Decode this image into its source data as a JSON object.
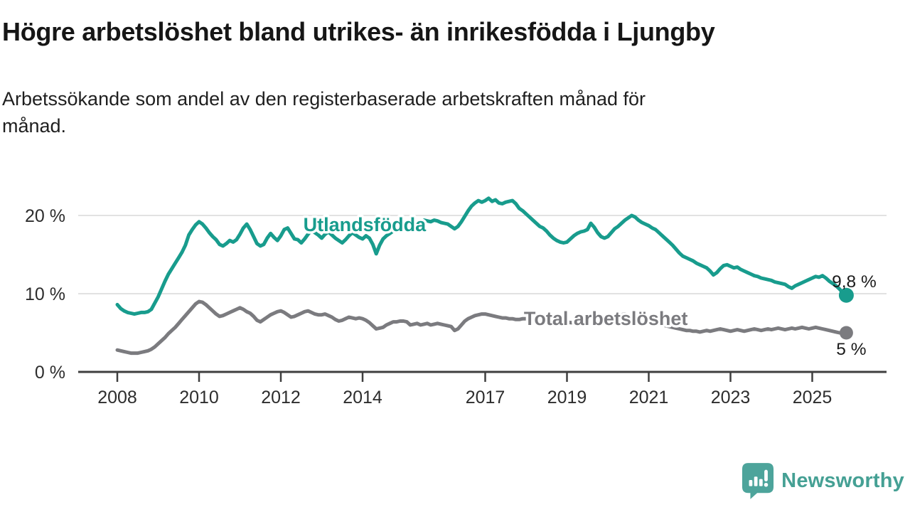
{
  "title": "Högre arbetslöshet bland utrikes- än inrikesfödda i Ljungby",
  "subtitle": "Arbetssökande som andel av den registerbaserade arbetskraften månad för\nmånad.",
  "branding": {
    "name": "Newsworthy",
    "color": "#45a094"
  },
  "colors": {
    "grid": "#d9d9d9",
    "axis": "#3f3f3f",
    "tick_label": "#2d2d2d",
    "value_label": "#1b1b1b",
    "background": "#ffffff"
  },
  "chart_data": {
    "type": "line",
    "title": "Högre arbetslöshet bland utrikes- än inrikesfödda i Ljungby",
    "subtitle": "Arbetssökande som andel av den registerbaserade arbetskraften månad för månad.",
    "unit": "%",
    "x_start_year": 2008,
    "points_per_year": 12,
    "x_ticks": [
      2008,
      2010,
      2012,
      2014,
      2017,
      2019,
      2021,
      2023,
      2025
    ],
    "y_ticks": [
      0,
      10,
      20
    ],
    "y_tick_labels": [
      "0 %",
      "10 %",
      "20 %"
    ],
    "ylim": [
      0,
      23.5
    ],
    "grid": true,
    "legend_position": "inline-labels",
    "series_label_anchors": [
      {
        "year": 2014.05,
        "value": 18.8
      },
      {
        "year": 2019.95,
        "value": 6.8
      }
    ],
    "series": [
      {
        "name": "Utlandsfödda",
        "color": "#189c8d",
        "end_label": "9,8 %",
        "end_label_offset": [
          11,
          -11
        ],
        "dot_radius": 10.5,
        "values": [
          8.6,
          8.1,
          7.8,
          7.6,
          7.5,
          7.4,
          7.5,
          7.6,
          7.6,
          7.7,
          8.0,
          8.8,
          9.6,
          10.6,
          11.6,
          12.5,
          13.2,
          13.9,
          14.6,
          15.3,
          16.2,
          17.5,
          18.2,
          18.8,
          19.2,
          18.9,
          18.4,
          17.8,
          17.3,
          16.9,
          16.3,
          16.1,
          16.4,
          16.8,
          16.6,
          16.9,
          17.6,
          18.4,
          18.9,
          18.2,
          17.3,
          16.4,
          16.1,
          16.3,
          17.1,
          17.7,
          17.2,
          16.8,
          17.4,
          18.2,
          18.4,
          17.7,
          17.0,
          16.9,
          16.5,
          17.0,
          17.6,
          18.1,
          17.8,
          17.5,
          17.1,
          17.6,
          17.9,
          17.5,
          17.1,
          16.8,
          16.5,
          16.9,
          17.4,
          17.8,
          17.5,
          17.2,
          17.0,
          17.4,
          17.1,
          16.3,
          15.1,
          16.2,
          17.0,
          17.4,
          17.7,
          18.0,
          18.3,
          18.6,
          18.9,
          19.1,
          19.3,
          19.2,
          19.0,
          19.2,
          19.4,
          19.3,
          19.2,
          19.4,
          19.3,
          19.1,
          19.0,
          18.9,
          18.6,
          18.3,
          18.6,
          19.2,
          19.9,
          20.6,
          21.2,
          21.6,
          21.9,
          21.7,
          21.9,
          22.2,
          21.8,
          22.0,
          21.6,
          21.5,
          21.7,
          21.8,
          21.9,
          21.5,
          20.9,
          20.6,
          20.2,
          19.8,
          19.4,
          19.0,
          18.6,
          18.4,
          18.0,
          17.5,
          17.1,
          16.8,
          16.6,
          16.5,
          16.6,
          17.0,
          17.4,
          17.7,
          17.9,
          18.0,
          18.2,
          19.0,
          18.5,
          17.8,
          17.3,
          17.1,
          17.3,
          17.8,
          18.3,
          18.6,
          19.0,
          19.4,
          19.7,
          20.0,
          19.8,
          19.4,
          19.1,
          18.9,
          18.7,
          18.4,
          18.2,
          17.8,
          17.4,
          17.0,
          16.6,
          16.2,
          15.7,
          15.2,
          14.8,
          14.6,
          14.4,
          14.2,
          13.9,
          13.7,
          13.5,
          13.3,
          12.9,
          12.4,
          12.7,
          13.2,
          13.6,
          13.7,
          13.5,
          13.3,
          13.4,
          13.1,
          12.9,
          12.7,
          12.5,
          12.3,
          12.2,
          12.0,
          11.9,
          11.8,
          11.7,
          11.5,
          11.4,
          11.3,
          11.2,
          10.9,
          10.7,
          11.0,
          11.2,
          11.4,
          11.6,
          11.8,
          12.0,
          12.2,
          12.1,
          12.3,
          12.0,
          11.6,
          11.3,
          11.0,
          10.6,
          10.1,
          9.8
        ]
      },
      {
        "name": "Total arbetslöshet",
        "color": "#7b7b7f",
        "end_label": "5 %",
        "end_label_offset": [
          7,
          31
        ],
        "dot_radius": 9.5,
        "values": [
          2.8,
          2.7,
          2.6,
          2.5,
          2.4,
          2.4,
          2.4,
          2.5,
          2.6,
          2.7,
          2.9,
          3.2,
          3.6,
          4.0,
          4.4,
          4.9,
          5.3,
          5.7,
          6.2,
          6.7,
          7.2,
          7.7,
          8.2,
          8.7,
          9.0,
          8.9,
          8.6,
          8.2,
          7.8,
          7.4,
          7.1,
          7.2,
          7.4,
          7.6,
          7.8,
          8.0,
          8.2,
          8.0,
          7.7,
          7.5,
          7.1,
          6.6,
          6.4,
          6.7,
          7.0,
          7.3,
          7.5,
          7.7,
          7.8,
          7.6,
          7.3,
          7.0,
          7.1,
          7.3,
          7.5,
          7.7,
          7.8,
          7.6,
          7.4,
          7.3,
          7.3,
          7.4,
          7.2,
          7.0,
          6.7,
          6.5,
          6.6,
          6.8,
          7.0,
          6.9,
          6.8,
          6.9,
          6.8,
          6.6,
          6.3,
          5.9,
          5.5,
          5.6,
          5.7,
          6.0,
          6.2,
          6.4,
          6.4,
          6.5,
          6.5,
          6.4,
          6.0,
          6.1,
          6.2,
          6.0,
          6.1,
          6.2,
          6.0,
          6.1,
          6.2,
          6.1,
          6.0,
          5.9,
          5.8,
          5.3,
          5.5,
          6.0,
          6.5,
          6.8,
          7.0,
          7.2,
          7.3,
          7.4,
          7.4,
          7.3,
          7.2,
          7.1,
          7.0,
          6.9,
          6.9,
          6.8,
          6.8,
          6.7,
          6.7,
          6.8,
          6.8,
          6.7,
          6.6,
          6.5,
          6.4,
          6.3,
          6.3,
          6.2,
          6.2,
          6.3,
          6.3,
          6.4,
          6.4,
          6.3,
          6.3,
          6.2,
          6.2,
          6.3,
          6.4,
          6.5,
          6.4,
          6.3,
          6.4,
          6.5,
          6.6,
          6.8,
          7.0,
          7.2,
          7.3,
          7.4,
          7.3,
          7.2,
          7.0,
          6.8,
          6.6,
          6.5,
          6.4,
          6.3,
          6.2,
          6.1,
          6.0,
          5.9,
          5.8,
          5.7,
          5.6,
          5.5,
          5.4,
          5.3,
          5.3,
          5.2,
          5.2,
          5.1,
          5.2,
          5.3,
          5.2,
          5.3,
          5.4,
          5.5,
          5.4,
          5.3,
          5.2,
          5.3,
          5.4,
          5.3,
          5.2,
          5.3,
          5.4,
          5.5,
          5.4,
          5.3,
          5.4,
          5.5,
          5.4,
          5.5,
          5.6,
          5.5,
          5.4,
          5.5,
          5.6,
          5.5,
          5.6,
          5.7,
          5.6,
          5.5,
          5.6,
          5.7,
          5.6,
          5.5,
          5.4,
          5.3,
          5.2,
          5.1,
          5.0,
          5.0,
          5.0
        ]
      }
    ]
  }
}
